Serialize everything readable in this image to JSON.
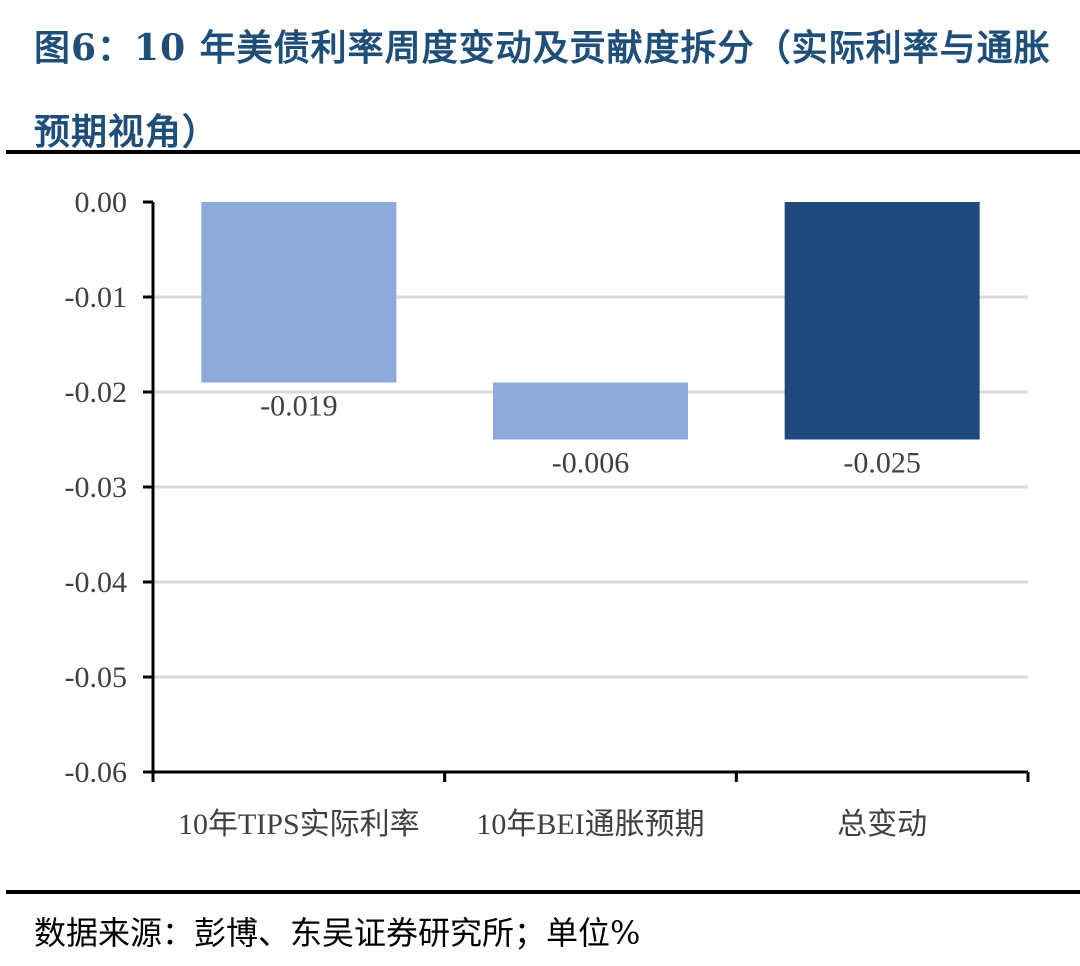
{
  "title": "图6：10 年美债利率周度变动及贡献度拆分（实际利率与通胀预期视角）",
  "source": "数据来源：彭博、东吴证券研究所；单位%",
  "colors": {
    "title": "#1f4e79",
    "light_bar": "#8eaadb",
    "dark_bar": "#1f497d",
    "grid": "#d9d9d9"
  },
  "chart_data": {
    "type": "bar",
    "subtype": "waterfall",
    "categories": [
      "10年TIPS实际利率",
      "10年BEI通胀预期",
      "总变动"
    ],
    "values": [
      -0.019,
      -0.006,
      -0.025
    ],
    "data_labels": [
      "-0.019",
      "-0.006",
      "-0.025"
    ],
    "ylim": [
      -0.06,
      0
    ],
    "yticks": [
      "0.00",
      "-0.01",
      "-0.02",
      "-0.03",
      "-0.04",
      "-0.05",
      "-0.06"
    ],
    "grid": true,
    "legend": "none"
  }
}
